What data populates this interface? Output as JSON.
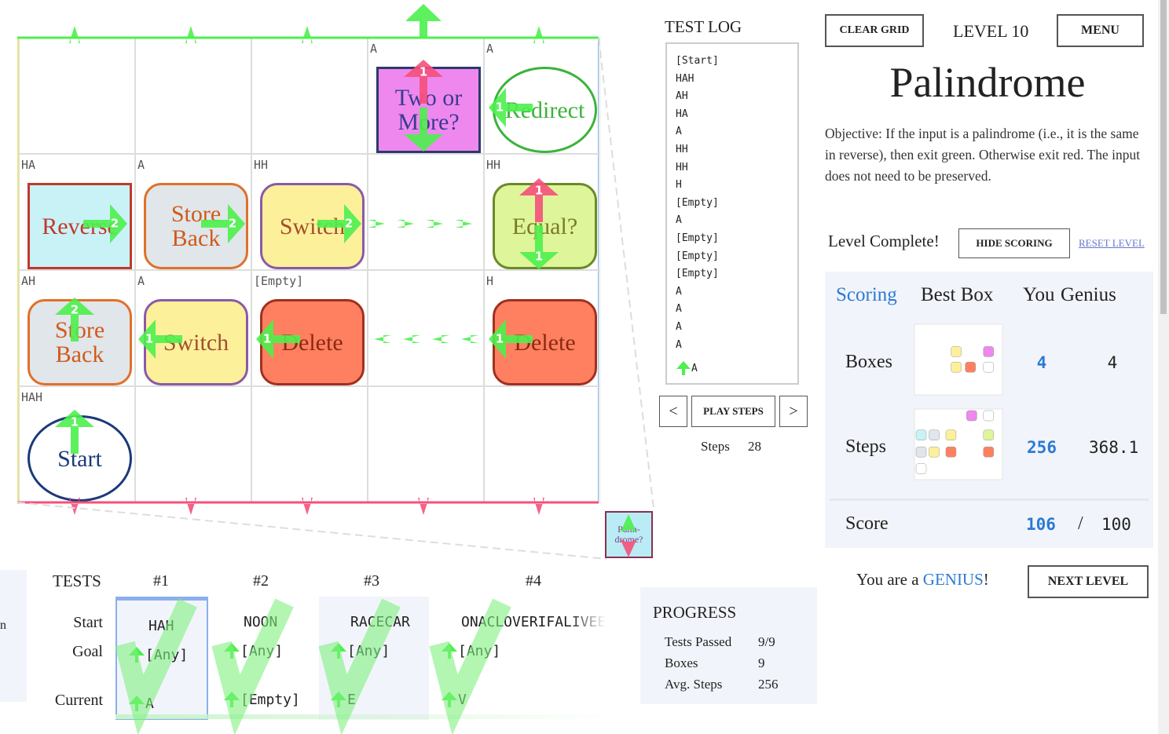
{
  "grid": {
    "rows": [
      [
        {},
        {},
        {},
        {
          "label": "A",
          "box": {
            "text": [
              "Two or",
              "More?"
            ],
            "badges": [
              1
            ]
          }
        },
        {
          "label": "A",
          "box": {
            "text": [
              "Redirect"
            ],
            "badges": [
              1
            ]
          }
        }
      ],
      [
        {
          "label": "HA",
          "box": {
            "text": [
              "Reverse"
            ],
            "badges": [
              2
            ]
          }
        },
        {
          "label": "A",
          "box": {
            "text": [
              "Store",
              "Back"
            ],
            "badges": [
              2
            ]
          }
        },
        {
          "label": "HH",
          "box": {
            "text": [
              "Switch"
            ],
            "badges": [
              2
            ]
          }
        },
        {},
        {
          "label": "HH",
          "box": {
            "text": [
              "Equal?"
            ],
            "badges": [
              1,
              1
            ]
          }
        }
      ],
      [
        {
          "label": "AH",
          "box": {
            "text": [
              "Store",
              "Back"
            ],
            "badges": [
              2
            ]
          }
        },
        {
          "label": "A",
          "box": {
            "text": [
              "Switch"
            ],
            "badges": [
              1
            ]
          }
        },
        {
          "label": "[Empty]",
          "box": {
            "text": [
              "Delete"
            ],
            "badges": [
              1
            ]
          }
        },
        {},
        {
          "label": "H",
          "box": {
            "text": [
              "Delete"
            ],
            "badges": [
              1
            ]
          }
        }
      ],
      [
        {
          "label": "HAH",
          "box": {
            "text": [
              "Start"
            ],
            "badges": [
              1
            ]
          }
        },
        {},
        {},
        {},
        {}
      ]
    ]
  },
  "mini_box": {
    "text": [
      "Palin-",
      "drome?"
    ]
  },
  "test_log": {
    "title": "TEST LOG",
    "entries": [
      "[Start]",
      "HAH",
      "AH",
      "HA",
      "A",
      "HH",
      "HH",
      "H",
      "[Empty]",
      "A",
      "[Empty]",
      "[Empty]",
      "[Empty]",
      "A",
      "A",
      "A",
      "A"
    ],
    "current": "A"
  },
  "controls": {
    "prev": "<",
    "play": "PLAY STEPS",
    "next": ">",
    "steps_label": "Steps",
    "steps_value": 28
  },
  "header": {
    "clear_grid": "CLEAR GRID",
    "level": "LEVEL 10",
    "menu": "MENU",
    "title": "Palindrome",
    "objective": "Objective: If the input is a palindrome (i.e., it is the same in reverse), then exit green. Otherwise exit red. The input does not need to be preserved."
  },
  "status": {
    "complete": "Level Complete!",
    "hide_scoring": "HIDE SCORING",
    "reset_level": "RESET LEVEL"
  },
  "scoring": {
    "headers": [
      "Scoring",
      "Best Box",
      "You",
      "Genius"
    ],
    "rows": [
      {
        "label": "Boxes",
        "you": 4,
        "genius": 4
      },
      {
        "label": "Steps",
        "you": 256,
        "genius": 368.1
      }
    ],
    "score": {
      "label": "Score",
      "you": 106,
      "sep": "/",
      "genius": 100
    }
  },
  "genius": {
    "prefix": "You are a ",
    "word": "GENIUS",
    "suffix": "!",
    "next_level": "NEXT LEVEL"
  },
  "left_fragment": "n",
  "tests": {
    "title": "TESTS",
    "row_labels": [
      "Start",
      "Goal",
      "Current"
    ],
    "columns": [
      {
        "name": "#1",
        "start": "HAH",
        "goal": "[Any]",
        "current": "A"
      },
      {
        "name": "#2",
        "start": "NOON",
        "goal": "[Any]",
        "current": "[Empty]"
      },
      {
        "name": "#3",
        "start": "RACECAR",
        "goal": "[Any]",
        "current": "E"
      },
      {
        "name": "#4",
        "start": "ONACLOVERIFALIVEE",
        "goal": "[Any]",
        "current": "V"
      }
    ]
  },
  "progress": {
    "title": "PROGRESS",
    "rows": [
      {
        "label": "Tests Passed",
        "value": "9/9"
      },
      {
        "label": "Boxes",
        "value": 9
      },
      {
        "label": "Avg. Steps",
        "value": 256
      }
    ]
  }
}
